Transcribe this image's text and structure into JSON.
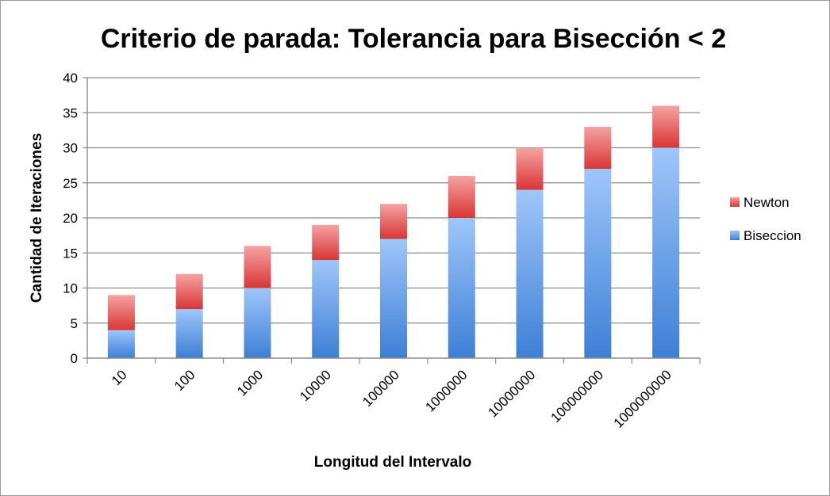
{
  "chart_data": {
    "type": "bar",
    "stacked": true,
    "title": "Criterio de parada: Tolerancia para Bisección < 2",
    "xlabel": "Longitud del Intervalo",
    "ylabel": "Cantidad de Iteraciones",
    "categories": [
      "10",
      "100",
      "1000",
      "10000",
      "100000",
      "1000000",
      "10000000",
      "100000000",
      "1000000000"
    ],
    "series": [
      {
        "name": "Biseccion",
        "values": [
          4,
          7,
          10,
          14,
          17,
          20,
          24,
          27,
          30
        ],
        "color_top": "#9fc6fa",
        "color_bottom": "#3d7fd6"
      },
      {
        "name": "Newton",
        "values": [
          5,
          5,
          6,
          5,
          5,
          6,
          6,
          6,
          6
        ],
        "color_top": "#f5a3a3",
        "color_bottom": "#d93535"
      }
    ],
    "ylim": [
      0,
      40
    ],
    "yticks": [
      "0",
      "5",
      "10",
      "15",
      "20",
      "25",
      "30",
      "35",
      "40"
    ],
    "grid": true,
    "legend": {
      "placement": "right",
      "entries": [
        "Newton",
        "Biseccion"
      ]
    }
  }
}
